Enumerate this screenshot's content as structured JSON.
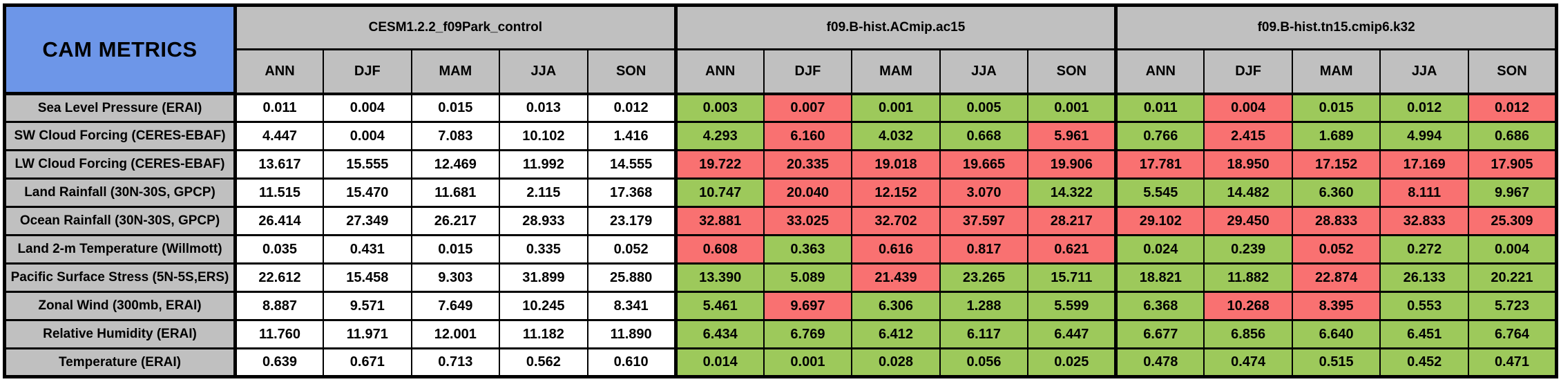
{
  "colors": {
    "title_blue": "#6D96E8",
    "header_gray": "#C0C0C0",
    "control_white": "#FFFFFF",
    "better_green": "#9DC95B",
    "worse_red": "#F97171",
    "border_black": "#000000"
  },
  "chart_data": {
    "type": "table",
    "title": "CAM METRICS",
    "column_groups": [
      {
        "id": "control",
        "name": "CESM1.2.2_f09Park_control"
      },
      {
        "id": "ac15",
        "name": "f09.B-hist.ACmip.ac15"
      },
      {
        "id": "k32",
        "name": "f09.B-hist.tn15.cmip6.k32"
      }
    ],
    "seasons": [
      "ANN",
      "DJF",
      "MAM",
      "JJA",
      "SON"
    ],
    "status_legend": {
      "w": "control (white)",
      "g": "green",
      "r": "red"
    },
    "rows": [
      {
        "label": "Sea Level Pressure (ERAI)",
        "groups": [
          {
            "values": [
              "0.011",
              "0.004",
              "0.015",
              "0.013",
              "0.012"
            ],
            "status": [
              "w",
              "w",
              "w",
              "w",
              "w"
            ]
          },
          {
            "values": [
              "0.003",
              "0.007",
              "0.001",
              "0.005",
              "0.001"
            ],
            "status": [
              "g",
              "r",
              "g",
              "g",
              "g"
            ]
          },
          {
            "values": [
              "0.011",
              "0.004",
              "0.015",
              "0.012",
              "0.012"
            ],
            "status": [
              "g",
              "r",
              "g",
              "g",
              "r"
            ]
          }
        ]
      },
      {
        "label": "SW Cloud Forcing (CERES-EBAF)",
        "groups": [
          {
            "values": [
              "4.447",
              "0.004",
              "7.083",
              "10.102",
              "1.416"
            ],
            "status": [
              "w",
              "w",
              "w",
              "w",
              "w"
            ]
          },
          {
            "values": [
              "4.293",
              "6.160",
              "4.032",
              "0.668",
              "5.961"
            ],
            "status": [
              "g",
              "r",
              "g",
              "g",
              "r"
            ]
          },
          {
            "values": [
              "0.766",
              "2.415",
              "1.689",
              "4.994",
              "0.686"
            ],
            "status": [
              "g",
              "r",
              "g",
              "g",
              "g"
            ]
          }
        ]
      },
      {
        "label": "LW Cloud Forcing (CERES-EBAF)",
        "groups": [
          {
            "values": [
              "13.617",
              "15.555",
              "12.469",
              "11.992",
              "14.555"
            ],
            "status": [
              "w",
              "w",
              "w",
              "w",
              "w"
            ]
          },
          {
            "values": [
              "19.722",
              "20.335",
              "19.018",
              "19.665",
              "19.906"
            ],
            "status": [
              "r",
              "r",
              "r",
              "r",
              "r"
            ]
          },
          {
            "values": [
              "17.781",
              "18.950",
              "17.152",
              "17.169",
              "17.905"
            ],
            "status": [
              "r",
              "r",
              "r",
              "r",
              "r"
            ]
          }
        ]
      },
      {
        "label": "Land Rainfall (30N-30S, GPCP)",
        "groups": [
          {
            "values": [
              "11.515",
              "15.470",
              "11.681",
              "2.115",
              "17.368"
            ],
            "status": [
              "w",
              "w",
              "w",
              "w",
              "w"
            ]
          },
          {
            "values": [
              "10.747",
              "20.040",
              "12.152",
              "3.070",
              "14.322"
            ],
            "status": [
              "g",
              "r",
              "r",
              "r",
              "g"
            ]
          },
          {
            "values": [
              "5.545",
              "14.482",
              "6.360",
              "8.111",
              "9.967"
            ],
            "status": [
              "g",
              "g",
              "g",
              "r",
              "g"
            ]
          }
        ]
      },
      {
        "label": "Ocean Rainfall (30N-30S, GPCP)",
        "groups": [
          {
            "values": [
              "26.414",
              "27.349",
              "26.217",
              "28.933",
              "23.179"
            ],
            "status": [
              "w",
              "w",
              "w",
              "w",
              "w"
            ]
          },
          {
            "values": [
              "32.881",
              "33.025",
              "32.702",
              "37.597",
              "28.217"
            ],
            "status": [
              "r",
              "r",
              "r",
              "r",
              "r"
            ]
          },
          {
            "values": [
              "29.102",
              "29.450",
              "28.833",
              "32.833",
              "25.309"
            ],
            "status": [
              "r",
              "r",
              "r",
              "r",
              "r"
            ]
          }
        ]
      },
      {
        "label": "Land 2-m Temperature (Willmott)",
        "groups": [
          {
            "values": [
              "0.035",
              "0.431",
              "0.015",
              "0.335",
              "0.052"
            ],
            "status": [
              "w",
              "w",
              "w",
              "w",
              "w"
            ]
          },
          {
            "values": [
              "0.608",
              "0.363",
              "0.616",
              "0.817",
              "0.621"
            ],
            "status": [
              "r",
              "g",
              "r",
              "r",
              "r"
            ]
          },
          {
            "values": [
              "0.024",
              "0.239",
              "0.052",
              "0.272",
              "0.004"
            ],
            "status": [
              "g",
              "g",
              "r",
              "g",
              "g"
            ]
          }
        ]
      },
      {
        "label": "Pacific Surface Stress (5N-5S,ERS)",
        "groups": [
          {
            "values": [
              "22.612",
              "15.458",
              "9.303",
              "31.899",
              "25.880"
            ],
            "status": [
              "w",
              "w",
              "w",
              "w",
              "w"
            ]
          },
          {
            "values": [
              "13.390",
              "5.089",
              "21.439",
              "23.265",
              "15.711"
            ],
            "status": [
              "g",
              "g",
              "r",
              "g",
              "g"
            ]
          },
          {
            "values": [
              "18.821",
              "11.882",
              "22.874",
              "26.133",
              "20.221"
            ],
            "status": [
              "g",
              "g",
              "r",
              "g",
              "g"
            ]
          }
        ]
      },
      {
        "label": "Zonal Wind (300mb, ERAI)",
        "groups": [
          {
            "values": [
              "8.887",
              "9.571",
              "7.649",
              "10.245",
              "8.341"
            ],
            "status": [
              "w",
              "w",
              "w",
              "w",
              "w"
            ]
          },
          {
            "values": [
              "5.461",
              "9.697",
              "6.306",
              "1.288",
              "5.599"
            ],
            "status": [
              "g",
              "r",
              "g",
              "g",
              "g"
            ]
          },
          {
            "values": [
              "6.368",
              "10.268",
              "8.395",
              "0.553",
              "5.723"
            ],
            "status": [
              "g",
              "r",
              "r",
              "g",
              "g"
            ]
          }
        ]
      },
      {
        "label": "Relative Humidity (ERAI)",
        "groups": [
          {
            "values": [
              "11.760",
              "11.971",
              "12.001",
              "11.182",
              "11.890"
            ],
            "status": [
              "w",
              "w",
              "w",
              "w",
              "w"
            ]
          },
          {
            "values": [
              "6.434",
              "6.769",
              "6.412",
              "6.117",
              "6.447"
            ],
            "status": [
              "g",
              "g",
              "g",
              "g",
              "g"
            ]
          },
          {
            "values": [
              "6.677",
              "6.856",
              "6.640",
              "6.451",
              "6.764"
            ],
            "status": [
              "g",
              "g",
              "g",
              "g",
              "g"
            ]
          }
        ]
      },
      {
        "label": "Temperature (ERAI)",
        "groups": [
          {
            "values": [
              "0.639",
              "0.671",
              "0.713",
              "0.562",
              "0.610"
            ],
            "status": [
              "w",
              "w",
              "w",
              "w",
              "w"
            ]
          },
          {
            "values": [
              "0.014",
              "0.001",
              "0.028",
              "0.056",
              "0.025"
            ],
            "status": [
              "g",
              "g",
              "g",
              "g",
              "g"
            ]
          },
          {
            "values": [
              "0.478",
              "0.474",
              "0.515",
              "0.452",
              "0.471"
            ],
            "status": [
              "g",
              "g",
              "g",
              "g",
              "g"
            ]
          }
        ]
      }
    ]
  }
}
